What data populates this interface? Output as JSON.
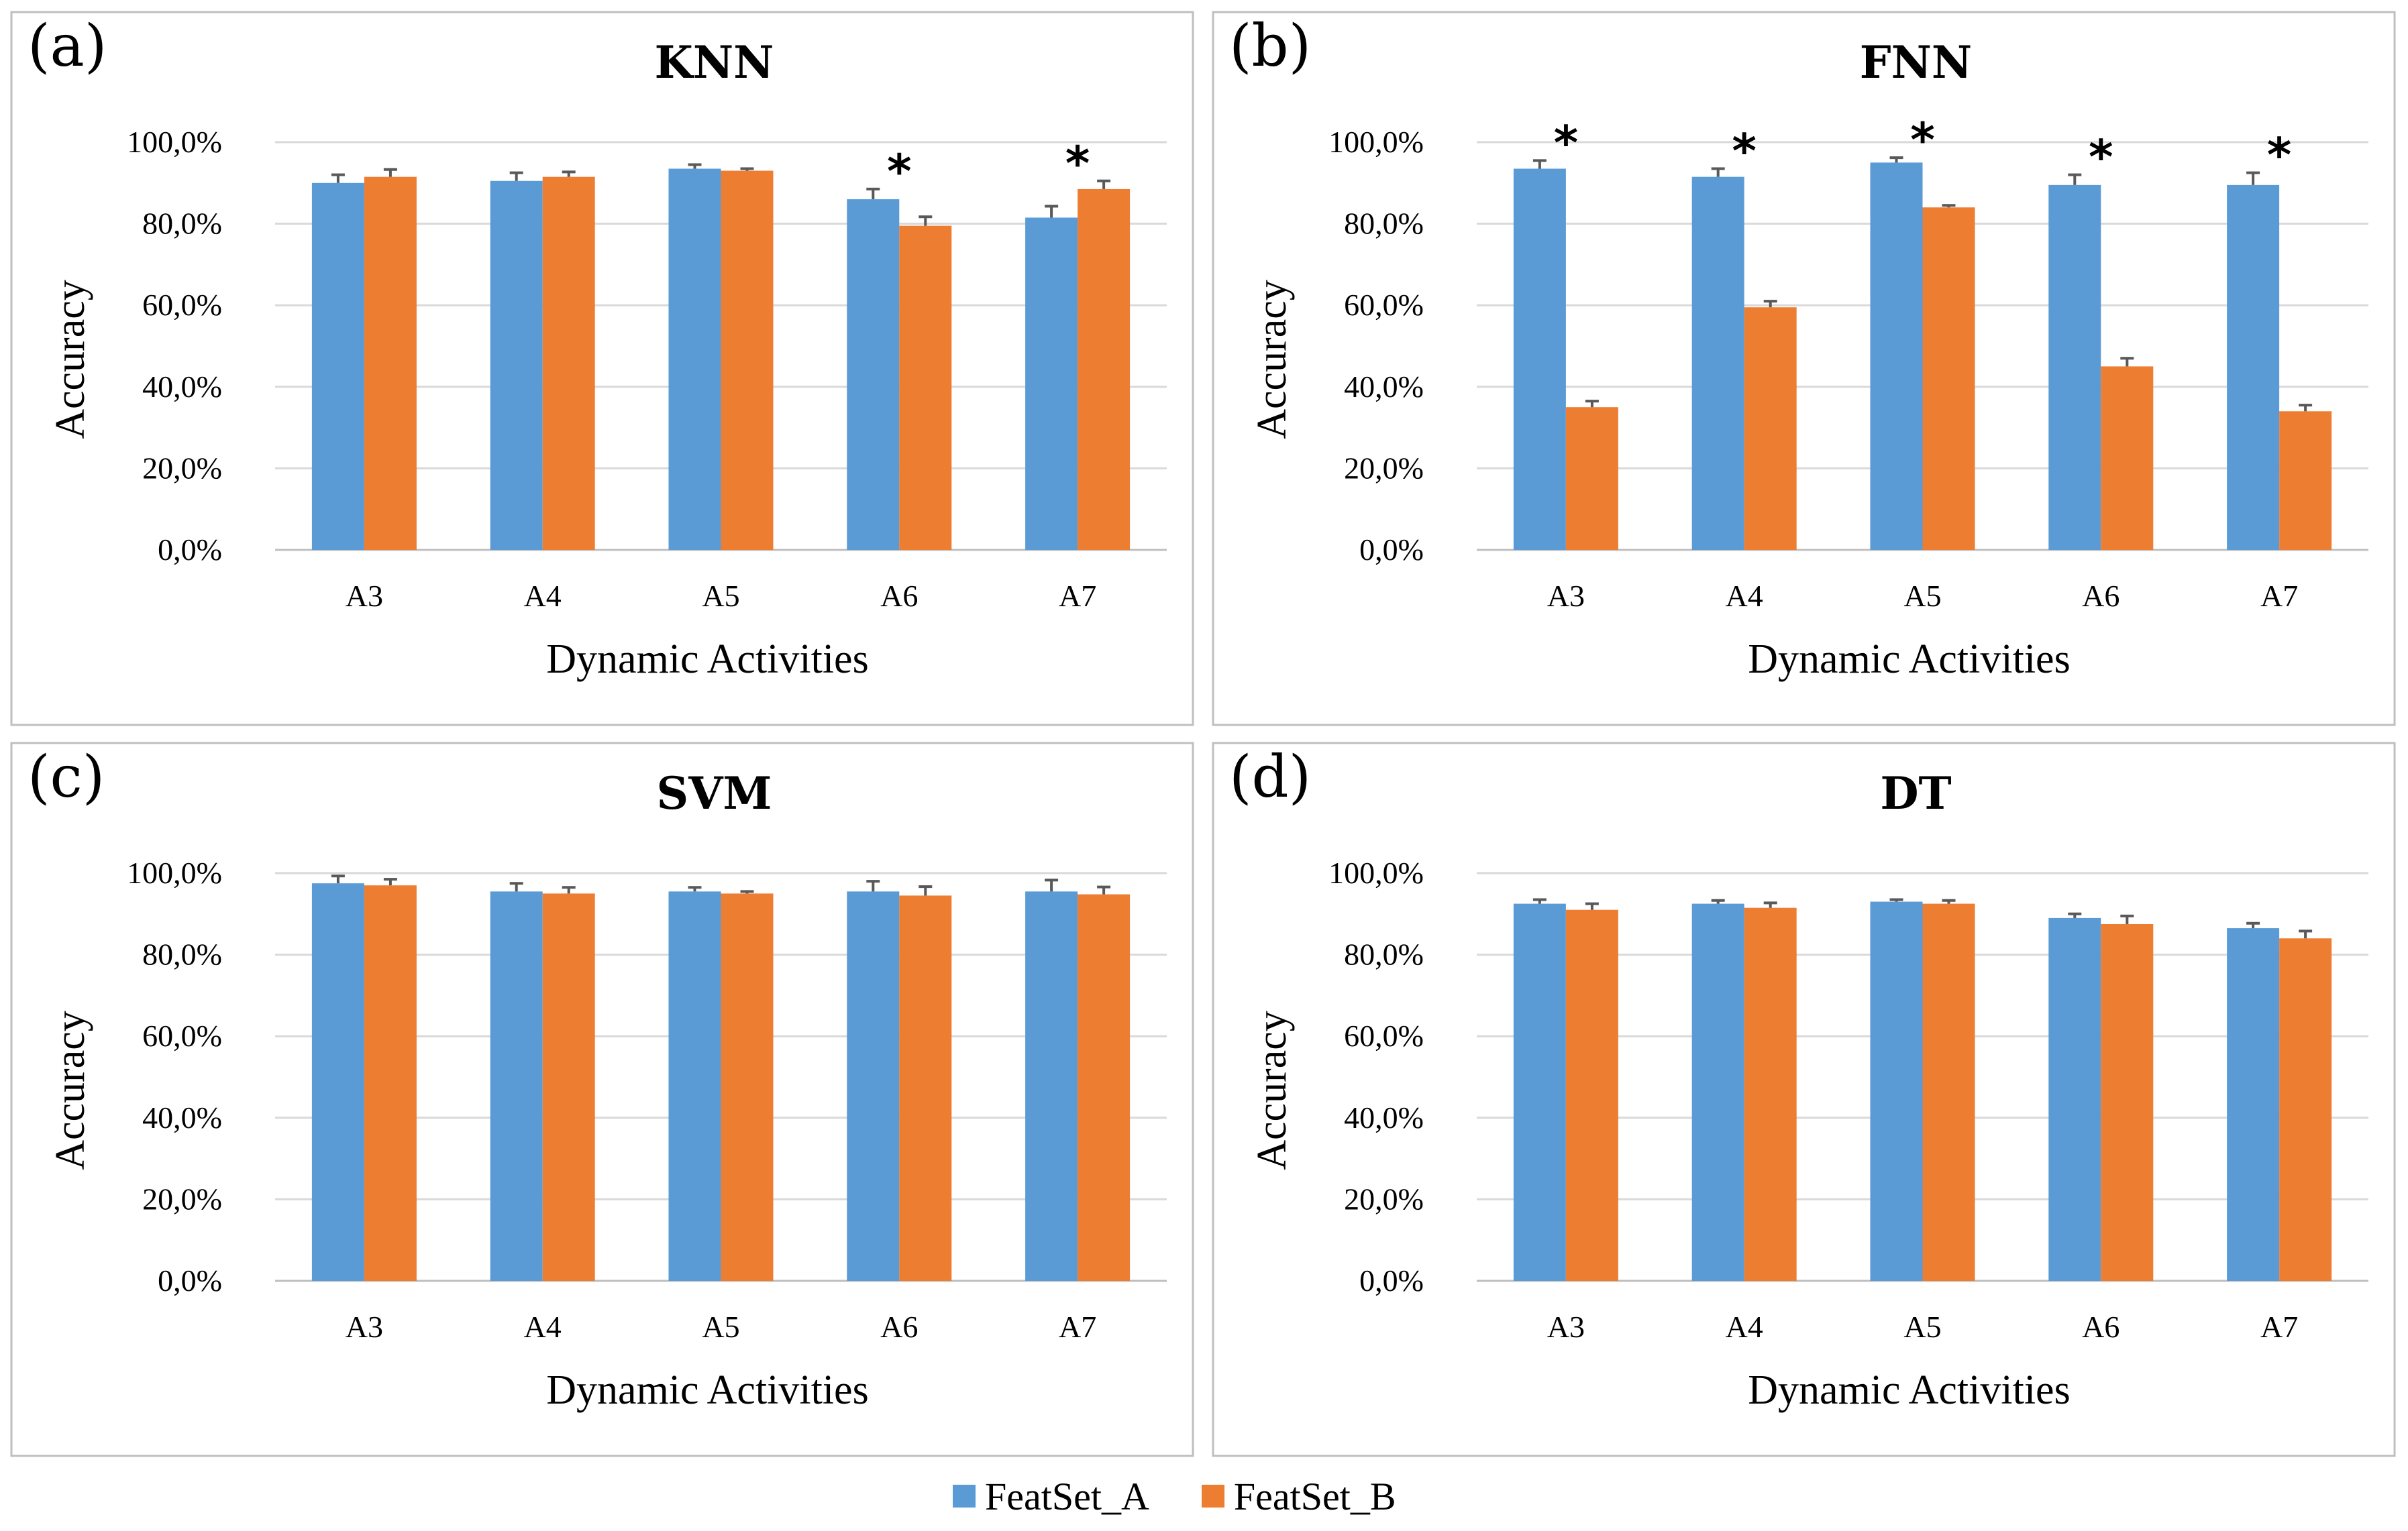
{
  "legend": {
    "series": [
      {
        "name": "FeatSet_A",
        "color": "#5B9BD5"
      },
      {
        "name": "FeatSet_B",
        "color": "#ED7D31"
      }
    ]
  },
  "chart_data": [
    {
      "type": "bar",
      "panel": "(a)",
      "title": "KNN",
      "xlabel": "Dynamic Activities",
      "ylabel": "Accuracy",
      "ylim": [
        0,
        100
      ],
      "ytick_labels": [
        "0,0%",
        "20,0%",
        "40,0%",
        "60,0%",
        "80,0%",
        "100,0%"
      ],
      "categories": [
        "A3",
        "A4",
        "A5",
        "A6",
        "A7"
      ],
      "series": [
        {
          "name": "FeatSet_A",
          "values": [
            90.0,
            90.5,
            93.5,
            86.0,
            81.5
          ],
          "errors": [
            2.0,
            2.0,
            1.0,
            2.5,
            2.8
          ]
        },
        {
          "name": "FeatSet_B",
          "values": [
            91.5,
            91.5,
            93.0,
            79.5,
            88.5
          ],
          "errors": [
            1.8,
            1.2,
            0.5,
            2.2,
            2.0
          ]
        }
      ],
      "significance": [
        "",
        "",
        "",
        "*",
        "*"
      ]
    },
    {
      "type": "bar",
      "panel": "(b)",
      "title": "FNN",
      "xlabel": "Dynamic Activities",
      "ylabel": "Accuracy",
      "ylim": [
        0,
        100
      ],
      "ytick_labels": [
        "0,0%",
        "20,0%",
        "40,0%",
        "60,0%",
        "80,0%",
        "100,0%"
      ],
      "categories": [
        "A3",
        "A4",
        "A5",
        "A6",
        "A7"
      ],
      "series": [
        {
          "name": "FeatSet_A",
          "values": [
            93.5,
            91.5,
            95.0,
            89.5,
            89.5
          ],
          "errors": [
            2.0,
            2.0,
            1.2,
            2.5,
            3.0
          ]
        },
        {
          "name": "FeatSet_B",
          "values": [
            35.0,
            59.5,
            84.0,
            45.0,
            34.0
          ],
          "errors": [
            1.5,
            1.5,
            0.5,
            2.0,
            1.5
          ]
        }
      ],
      "significance": [
        "*",
        "*",
        "*",
        "*",
        "*"
      ]
    },
    {
      "type": "bar",
      "panel": "(c)",
      "title": "SVM",
      "xlabel": "Dynamic Activities",
      "ylabel": "Accuracy",
      "ylim": [
        0,
        100
      ],
      "ytick_labels": [
        "0,0%",
        "20,0%",
        "40,0%",
        "60,0%",
        "80,0%",
        "100,0%"
      ],
      "categories": [
        "A3",
        "A4",
        "A5",
        "A6",
        "A7"
      ],
      "series": [
        {
          "name": "FeatSet_A",
          "values": [
            97.5,
            95.5,
            95.5,
            95.5,
            95.5
          ],
          "errors": [
            1.8,
            2.0,
            1.0,
            2.5,
            2.8
          ]
        },
        {
          "name": "FeatSet_B",
          "values": [
            97.0,
            95.0,
            95.0,
            94.5,
            94.8
          ],
          "errors": [
            1.5,
            1.5,
            0.5,
            2.2,
            1.8
          ]
        }
      ],
      "significance": [
        "",
        "",
        "",
        "",
        ""
      ]
    },
    {
      "type": "bar",
      "panel": "(d)",
      "title": "DT",
      "xlabel": "Dynamic Activities",
      "ylabel": "Accuracy",
      "ylim": [
        0,
        100
      ],
      "ytick_labels": [
        "0,0%",
        "20,0%",
        "40,0%",
        "60,0%",
        "80,0%",
        "100,0%"
      ],
      "categories": [
        "A3",
        "A4",
        "A5",
        "A6",
        "A7"
      ],
      "series": [
        {
          "name": "FeatSet_A",
          "values": [
            92.5,
            92.5,
            93.0,
            89.0,
            86.5
          ],
          "errors": [
            1.0,
            0.8,
            0.5,
            1.0,
            1.2
          ]
        },
        {
          "name": "FeatSet_B",
          "values": [
            91.0,
            91.5,
            92.5,
            87.5,
            84.0
          ],
          "errors": [
            1.5,
            1.2,
            0.8,
            2.0,
            1.8
          ]
        }
      ],
      "significance": [
        "",
        "",
        "",
        "",
        ""
      ]
    }
  ]
}
